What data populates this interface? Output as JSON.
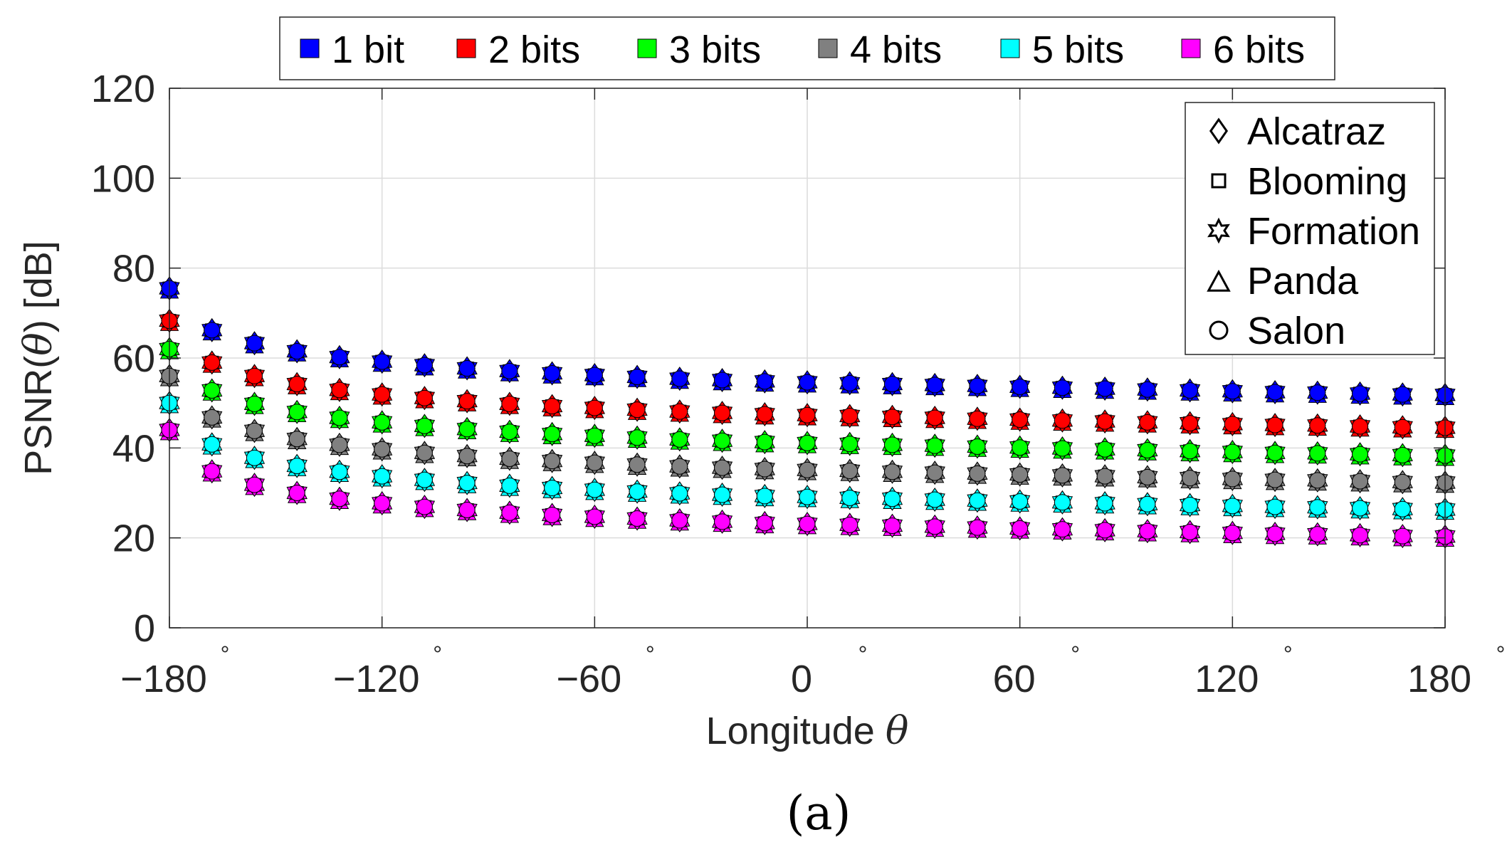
{
  "chart_data": {
    "type": "scatter",
    "xlabel_text": "Longitude",
    "xlabel_symbol": "θ",
    "ylabel_prefix": "PSNR(",
    "ylabel_symbol": "θ",
    "ylabel_suffix": ") [dB]",
    "caption": "(a)",
    "xlim": [
      -180,
      180
    ],
    "ylim": [
      0,
      120
    ],
    "xticks": [
      {
        "value": -180,
        "label": "−180"
      },
      {
        "value": -120,
        "label": "−120"
      },
      {
        "value": -60,
        "label": "−60"
      },
      {
        "value": 0,
        "label": "0"
      },
      {
        "value": 60,
        "label": "60"
      },
      {
        "value": 120,
        "label": "120"
      },
      {
        "value": 180,
        "label": "180"
      }
    ],
    "degree_symbol": "°",
    "yticks": [
      {
        "value": 0,
        "label": "0"
      },
      {
        "value": 20,
        "label": "20"
      },
      {
        "value": 40,
        "label": "40"
      },
      {
        "value": 60,
        "label": "60"
      },
      {
        "value": 80,
        "label": "80"
      },
      {
        "value": 100,
        "label": "100"
      },
      {
        "value": 120,
        "label": "120"
      }
    ],
    "grid": true,
    "x": [
      -180,
      -168,
      -156,
      -144,
      -132,
      -120,
      -108,
      -96,
      -84,
      -72,
      -60,
      -48,
      -36,
      -24,
      -12,
      0,
      12,
      24,
      36,
      48,
      60,
      72,
      84,
      96,
      108,
      120,
      132,
      144,
      156,
      168,
      180
    ],
    "series": [
      {
        "name": "1 bit",
        "color": "#0000ff",
        "values": [
          75.5,
          66.2,
          63.3,
          61.5,
          60.2,
          59.2,
          58.4,
          57.7,
          57.1,
          56.6,
          56.2,
          55.8,
          55.4,
          55.1,
          54.8,
          54.6,
          54.4,
          54.2,
          54.0,
          53.8,
          53.6,
          53.4,
          53.2,
          53.0,
          52.8,
          52.6,
          52.4,
          52.3,
          52.1,
          51.9,
          51.8
        ]
      },
      {
        "name": "2 bits",
        "color": "#ff0000",
        "values": [
          68.3,
          59.0,
          56.0,
          54.2,
          52.9,
          51.9,
          51.1,
          50.4,
          49.8,
          49.3,
          48.9,
          48.5,
          48.1,
          47.8,
          47.5,
          47.3,
          47.1,
          46.9,
          46.7,
          46.5,
          46.3,
          46.1,
          45.9,
          45.7,
          45.5,
          45.3,
          45.1,
          45.0,
          44.8,
          44.6,
          44.5
        ]
      },
      {
        "name": "3 bits",
        "color": "#00ff00",
        "values": [
          62.0,
          52.8,
          49.8,
          48.0,
          46.7,
          45.7,
          44.9,
          44.2,
          43.6,
          43.1,
          42.7,
          42.3,
          41.9,
          41.6,
          41.3,
          41.1,
          40.9,
          40.7,
          40.5,
          40.3,
          40.1,
          39.9,
          39.7,
          39.5,
          39.3,
          39.1,
          38.9,
          38.8,
          38.6,
          38.4,
          38.3
        ]
      },
      {
        "name": "4 bits",
        "color": "#808080",
        "values": [
          56.0,
          46.8,
          43.8,
          42.0,
          40.7,
          39.7,
          38.9,
          38.2,
          37.6,
          37.1,
          36.7,
          36.3,
          35.9,
          35.6,
          35.3,
          35.1,
          34.9,
          34.7,
          34.5,
          34.3,
          34.1,
          33.9,
          33.7,
          33.5,
          33.3,
          33.1,
          32.9,
          32.8,
          32.6,
          32.4,
          32.3
        ]
      },
      {
        "name": "5 bits",
        "color": "#00ffff",
        "values": [
          50.0,
          40.8,
          37.8,
          36.0,
          34.7,
          33.7,
          32.9,
          32.2,
          31.6,
          31.1,
          30.7,
          30.3,
          29.9,
          29.6,
          29.3,
          29.1,
          28.9,
          28.7,
          28.5,
          28.3,
          28.1,
          27.9,
          27.7,
          27.5,
          27.3,
          27.1,
          26.9,
          26.8,
          26.6,
          26.4,
          26.3
        ]
      },
      {
        "name": "6 bits",
        "color": "#ff00ff",
        "values": [
          44.0,
          34.8,
          31.8,
          30.0,
          28.7,
          27.7,
          26.9,
          26.2,
          25.6,
          25.1,
          24.7,
          24.3,
          23.9,
          23.6,
          23.3,
          23.1,
          22.9,
          22.7,
          22.5,
          22.3,
          22.1,
          21.9,
          21.7,
          21.5,
          21.3,
          21.1,
          20.9,
          20.8,
          20.6,
          20.4,
          20.3
        ]
      }
    ],
    "datasets": [
      {
        "name": "Alcatraz",
        "marker": "diamond"
      },
      {
        "name": "Blooming",
        "marker": "square"
      },
      {
        "name": "Formation",
        "marker": "star"
      },
      {
        "name": "Panda",
        "marker": "triangle"
      },
      {
        "name": "Salon",
        "marker": "circle"
      }
    ],
    "color_legend_location": "top-outside",
    "marker_legend_location": "top-right"
  }
}
